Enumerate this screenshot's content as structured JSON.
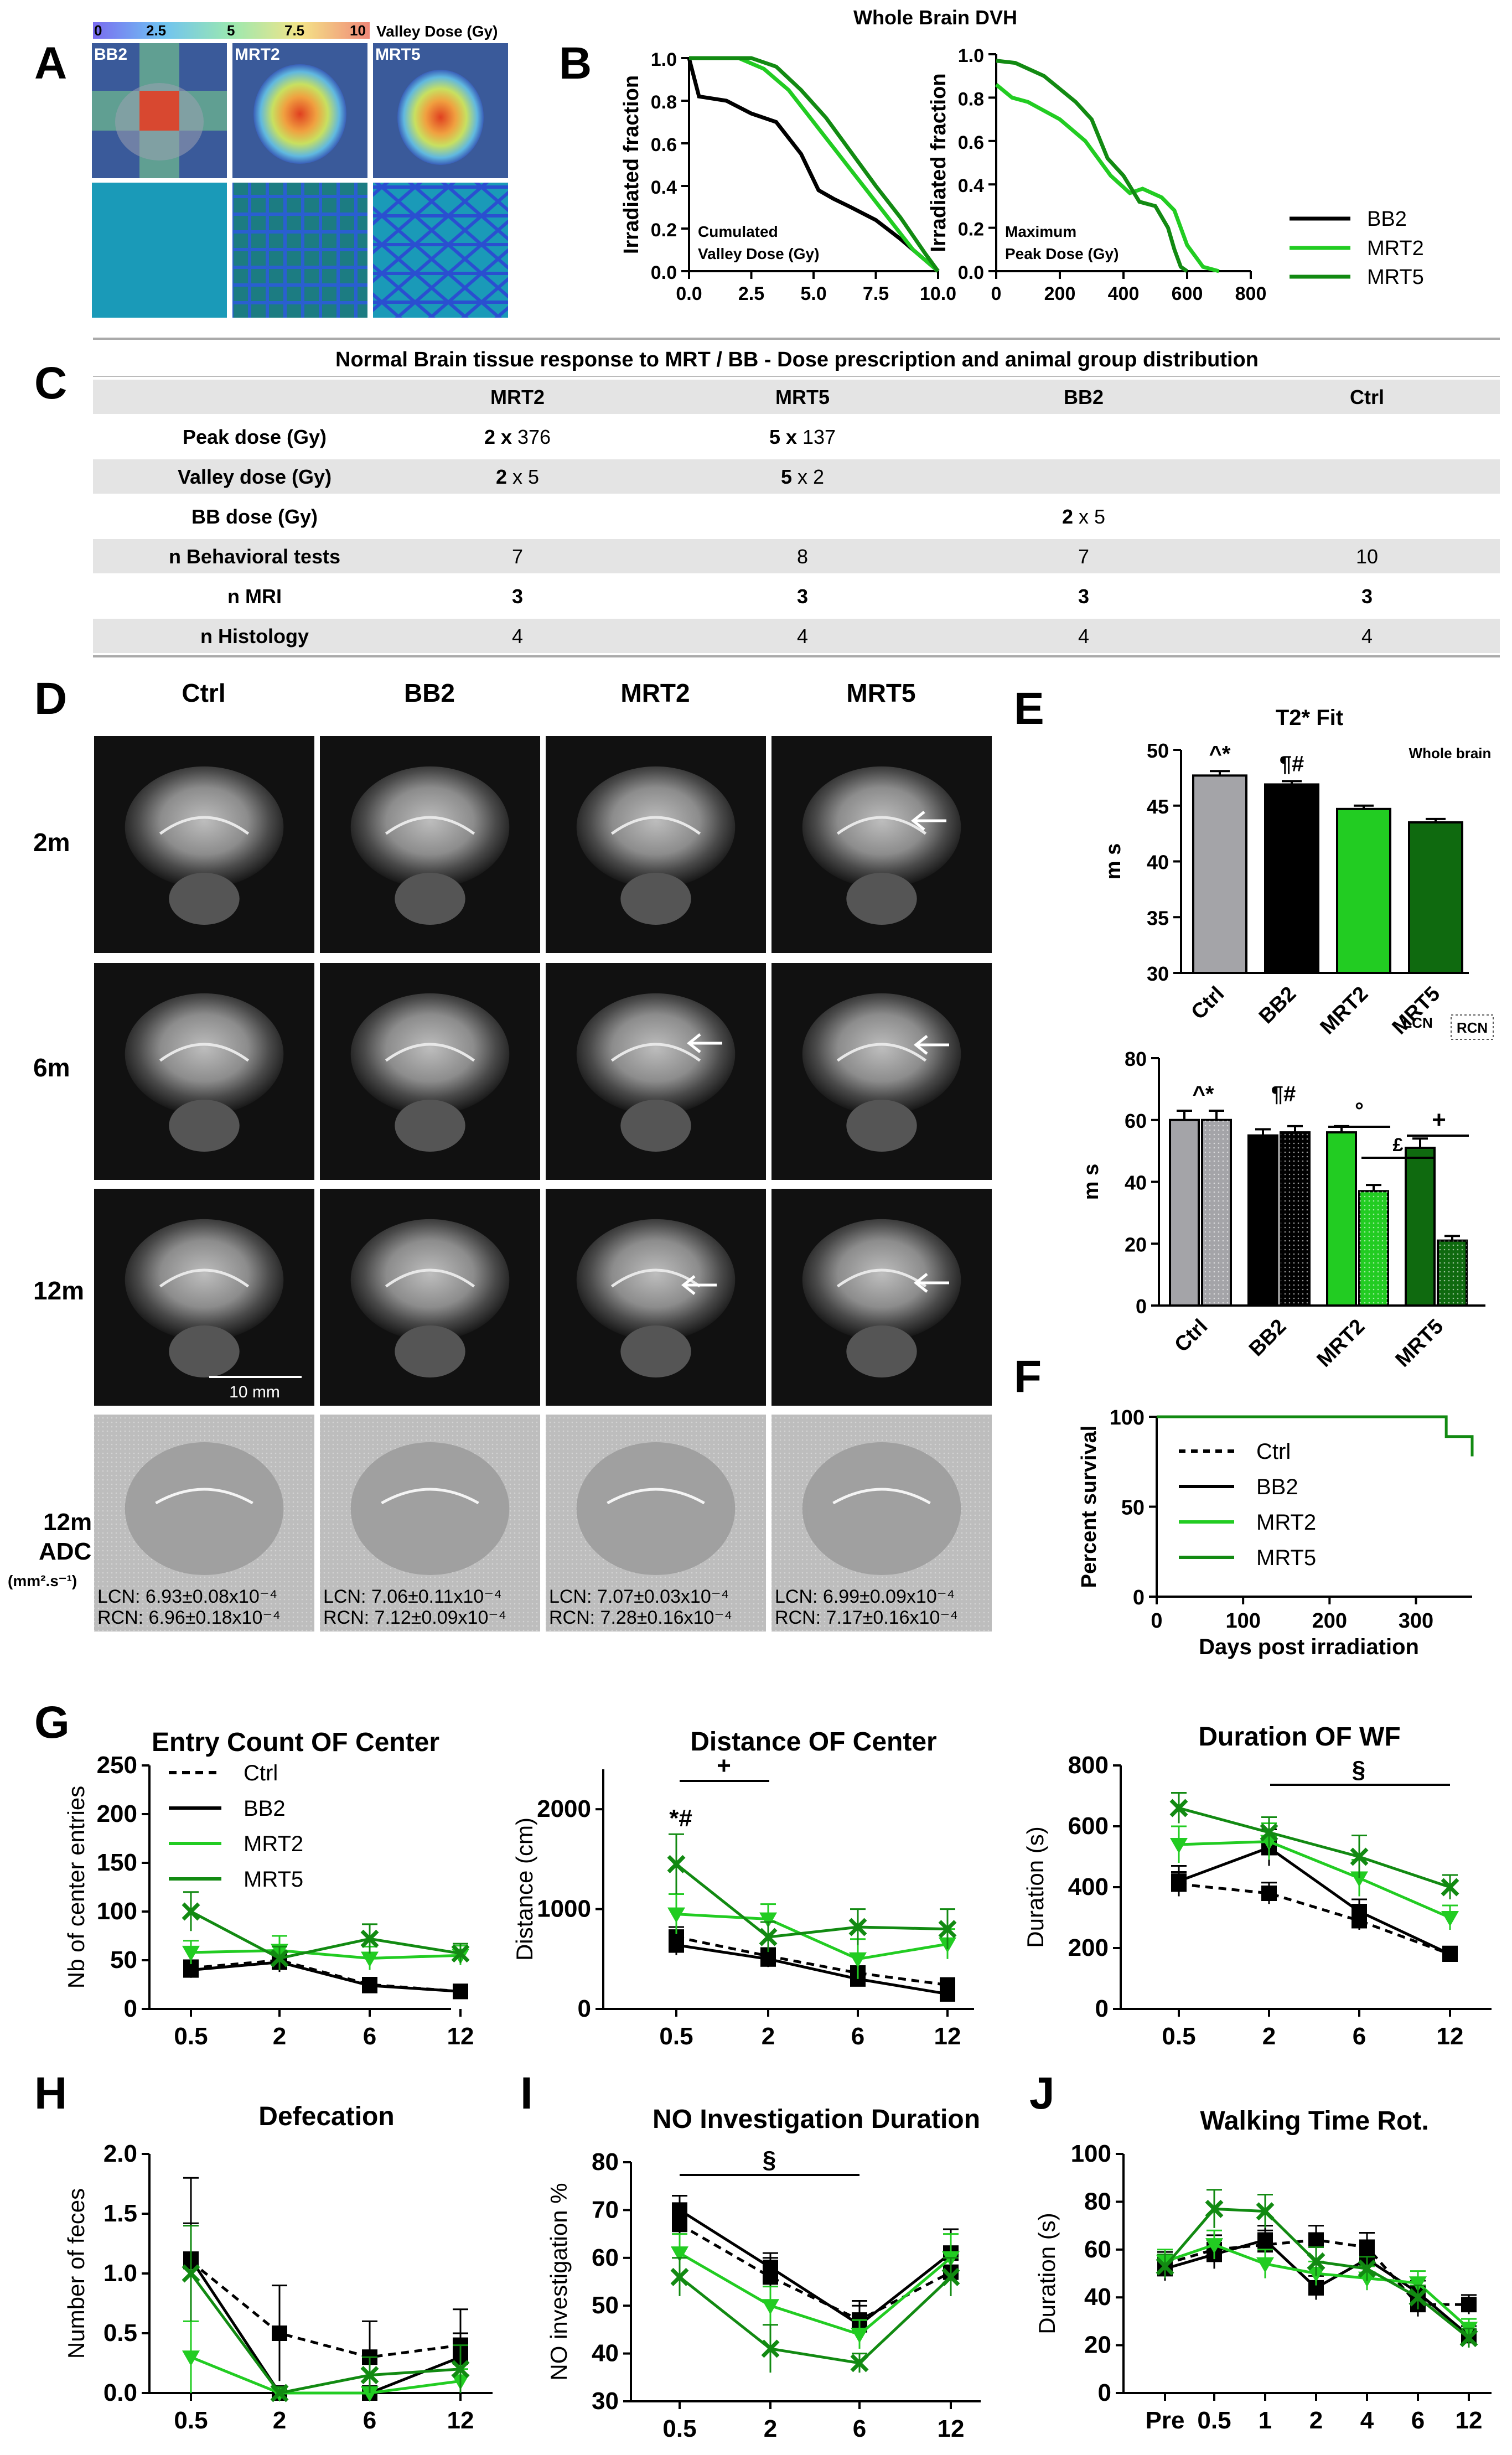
{
  "panel_letters": {
    "A": "A",
    "B": "B",
    "C": "C",
    "D": "D",
    "E": "E",
    "F": "F",
    "G": "G",
    "H": "H",
    "I": "I",
    "J": "J"
  },
  "colors": {
    "ctrl": "#000000",
    "bb2": "#000000",
    "mrt2": "#22cc22",
    "mrt5": "#128a12",
    "ctrl_bar": "#a4a4a8",
    "mrt2_bar": "#22cc22",
    "mrt5_bar": "#0f6a0f"
  },
  "panel_a": {
    "colorbar_ticks": [
      "0",
      "2.5",
      "5",
      "7.5",
      "10"
    ],
    "colorbar_label": "Valley Dose (Gy)",
    "tiles": [
      "BB2",
      "MRT2",
      "MRT5"
    ]
  },
  "panel_b": {
    "title": "Whole Brain DVH",
    "legend": [
      "BB2",
      "MRT2",
      "MRT5"
    ]
  },
  "chart_data": [
    {
      "type": "line",
      "panel": "B-left",
      "ylabel": "Irradiated fraction",
      "note_line1": "Cumulated",
      "note_line2": "Valley Dose (Gy)",
      "xlim": [
        0,
        10
      ],
      "ylim": [
        0,
        1
      ],
      "xticks": [
        "0.0",
        "2.5",
        "5.0",
        "7.5",
        "10.0"
      ],
      "yticks": [
        "0.0",
        "0.2",
        "0.4",
        "0.6",
        "0.8",
        "1.0"
      ],
      "series": [
        {
          "name": "BB2",
          "color": "#000000",
          "x": [
            0,
            0.4,
            1.5,
            2.5,
            3.5,
            4.5,
            5.2,
            5.8,
            6.5,
            7.5,
            8.5,
            9.2,
            10
          ],
          "y": [
            1,
            0.82,
            0.8,
            0.74,
            0.7,
            0.55,
            0.38,
            0.34,
            0.3,
            0.24,
            0.15,
            0.08,
            0
          ]
        },
        {
          "name": "MRT2",
          "color": "#22cc22",
          "x": [
            0,
            2,
            3,
            4,
            5,
            6,
            7,
            8,
            9,
            10
          ],
          "y": [
            1,
            1,
            0.95,
            0.85,
            0.7,
            0.55,
            0.4,
            0.25,
            0.1,
            0
          ]
        },
        {
          "name": "MRT5",
          "color": "#128a12",
          "x": [
            0,
            2.5,
            3.5,
            4.5,
            5.5,
            6.5,
            7.5,
            8.5,
            9.5,
            10
          ],
          "y": [
            1,
            1,
            0.96,
            0.85,
            0.72,
            0.56,
            0.4,
            0.25,
            0.08,
            0
          ]
        }
      ]
    },
    {
      "type": "line",
      "panel": "B-right",
      "ylabel": "Irradiated fraction",
      "note_line1": "Maximum",
      "note_line2": "Peak Dose (Gy)",
      "xlim": [
        0,
        800
      ],
      "ylim": [
        0,
        1
      ],
      "xticks": [
        "0",
        "200",
        "400",
        "600",
        "800"
      ],
      "yticks": [
        "0.0",
        "0.2",
        "0.4",
        "0.6",
        "0.8",
        "1.0"
      ],
      "series": [
        {
          "name": "MRT2",
          "color": "#22cc22",
          "x": [
            0,
            50,
            100,
            200,
            280,
            360,
            420,
            460,
            520,
            560,
            600,
            650,
            700
          ],
          "y": [
            0.86,
            0.8,
            0.78,
            0.7,
            0.6,
            0.44,
            0.36,
            0.38,
            0.34,
            0.28,
            0.12,
            0.02,
            0
          ]
        },
        {
          "name": "MRT5",
          "color": "#128a12",
          "x": [
            0,
            60,
            150,
            250,
            300,
            350,
            400,
            450,
            500,
            540,
            560,
            580,
            600
          ],
          "y": [
            0.97,
            0.96,
            0.9,
            0.78,
            0.7,
            0.52,
            0.44,
            0.32,
            0.3,
            0.2,
            0.1,
            0.02,
            0
          ]
        }
      ]
    },
    {
      "type": "bar",
      "panel": "E-top",
      "title": "T2* Fit",
      "note": "Whole brain",
      "ylabel": "m s",
      "ylim": [
        30,
        50
      ],
      "yticks": [
        "30",
        "35",
        "40",
        "45",
        "50"
      ],
      "categories": [
        "Ctrl",
        "BB2",
        "MRT2",
        "MRT5"
      ],
      "values": [
        47.7,
        46.9,
        44.7,
        43.5
      ],
      "errors": [
        0.4,
        0.3,
        0.3,
        0.3
      ],
      "annotations": [
        "^*",
        "¶#",
        "",
        ""
      ]
    },
    {
      "type": "bar",
      "panel": "E-bottom",
      "ylabel": "m s",
      "ylim": [
        0,
        80
      ],
      "yticks": [
        "0",
        "20",
        "40",
        "60",
        "80"
      ],
      "categories": [
        "Ctrl",
        "BB2",
        "MRT2",
        "MRT5"
      ],
      "series": [
        {
          "name": "LCN",
          "values": [
            60,
            55,
            56,
            51
          ],
          "errors": [
            3,
            2,
            2,
            3
          ]
        },
        {
          "name": "RCN",
          "values": [
            60,
            56,
            37,
            21
          ],
          "errors": [
            3,
            2,
            2,
            1.5
          ]
        }
      ],
      "annotations": [
        "^*",
        "¶#",
        "°",
        "£",
        "+"
      ]
    },
    {
      "type": "line",
      "panel": "F",
      "ylabel": "Percent survival",
      "xlabel": "Days post irradiation",
      "xlim": [
        0,
        365
      ],
      "ylim": [
        0,
        100
      ],
      "xticks": [
        "0",
        "100",
        "200",
        "300"
      ],
      "yticks": [
        "0",
        "50",
        "100"
      ],
      "series": [
        {
          "name": "Ctrl",
          "color": "#000000",
          "x": [
            0,
            365
          ],
          "y": [
            100,
            100
          ]
        },
        {
          "name": "BB2",
          "color": "#000000",
          "x": [
            0,
            365
          ],
          "y": [
            100,
            100
          ]
        },
        {
          "name": "MRT2",
          "color": "#22cc22",
          "x": [
            0,
            365
          ],
          "y": [
            100,
            100
          ]
        },
        {
          "name": "MRT5",
          "color": "#128a12",
          "x": [
            0,
            335,
            335,
            365,
            365
          ],
          "y": [
            100,
            100,
            89,
            89,
            78
          ]
        }
      ]
    },
    {
      "type": "line",
      "panel": "G-1",
      "title": "Entry Count OF Center",
      "ylabel": "Nb of center entries",
      "ylim": [
        0,
        250
      ],
      "yticks": [
        "0",
        "50",
        "100",
        "150",
        "200",
        "250"
      ],
      "categories": [
        "0.5",
        "2",
        "6",
        "12"
      ],
      "series": [
        {
          "name": "Ctrl",
          "values": [
            42,
            50,
            25,
            18
          ],
          "errors": [
            8,
            10,
            6,
            5
          ]
        },
        {
          "name": "BB2",
          "values": [
            40,
            48,
            24,
            18
          ],
          "errors": [
            8,
            10,
            6,
            5
          ]
        },
        {
          "name": "MRT2",
          "values": [
            58,
            60,
            52,
            55
          ],
          "errors": [
            12,
            15,
            12,
            10
          ]
        },
        {
          "name": "MRT5",
          "values": [
            100,
            52,
            72,
            57
          ],
          "errors": [
            20,
            12,
            15,
            10
          ]
        }
      ]
    },
    {
      "type": "line",
      "panel": "G-2",
      "title": "Distance OF Center",
      "ylabel": "Distance (cm)",
      "ylim": [
        0,
        2400
      ],
      "yticks": [
        "0",
        "1000",
        "2000"
      ],
      "categories": [
        "0.5",
        "2",
        "6",
        "12"
      ],
      "series": [
        {
          "name": "Ctrl",
          "values": [
            720,
            530,
            360,
            240
          ],
          "errors": [
            100,
            80,
            60,
            50
          ]
        },
        {
          "name": "BB2",
          "values": [
            640,
            500,
            300,
            150
          ],
          "errors": [
            100,
            80,
            60,
            40
          ]
        },
        {
          "name": "MRT2",
          "values": [
            950,
            900,
            500,
            650
          ],
          "errors": [
            200,
            150,
            200,
            150
          ]
        },
        {
          "name": "MRT5",
          "values": [
            1450,
            720,
            820,
            800
          ],
          "errors": [
            300,
            150,
            180,
            200
          ]
        }
      ],
      "annotations": [
        "*#",
        "+"
      ]
    },
    {
      "type": "line",
      "panel": "G-3",
      "title": "Duration OF WF",
      "ylabel": "Duration (s)",
      "ylim": [
        0,
        800
      ],
      "yticks": [
        "0",
        "200",
        "400",
        "600",
        "800"
      ],
      "categories": [
        "0.5",
        "2",
        "6",
        "12"
      ],
      "series": [
        {
          "name": "Ctrl",
          "values": [
            410,
            380,
            290,
            180
          ],
          "errors": [
            40,
            35,
            30,
            20
          ]
        },
        {
          "name": "BB2",
          "values": [
            420,
            530,
            320,
            180
          ],
          "errors": [
            50,
            60,
            40,
            25
          ]
        },
        {
          "name": "MRT2",
          "values": [
            540,
            550,
            430,
            300
          ],
          "errors": [
            60,
            60,
            60,
            40
          ]
        },
        {
          "name": "MRT5",
          "values": [
            660,
            580,
            500,
            400
          ],
          "errors": [
            50,
            50,
            70,
            40
          ]
        }
      ],
      "annotations": [
        "§"
      ]
    },
    {
      "type": "line",
      "panel": "H",
      "title": "Defecation",
      "ylabel": "Number of feces",
      "ylim": [
        0,
        2
      ],
      "yticks": [
        "0.0",
        "0.5",
        "1.0",
        "1.5",
        "2.0"
      ],
      "categories": [
        "0.5",
        "2",
        "6",
        "12"
      ],
      "series": [
        {
          "name": "Ctrl",
          "values": [
            1.1,
            0.5,
            0.3,
            0.4
          ],
          "errors": [
            0.7,
            0.4,
            0.3,
            0.3
          ]
        },
        {
          "name": "BB2",
          "values": [
            1.12,
            0.0,
            0.0,
            0.3
          ],
          "errors": [
            0.3,
            0.05,
            0.05,
            0.2
          ]
        },
        {
          "name": "MRT2",
          "values": [
            0.3,
            0.0,
            0.0,
            0.1
          ],
          "errors": [
            0.3,
            0.05,
            0.05,
            0.1
          ]
        },
        {
          "name": "MRT5",
          "values": [
            1.0,
            0.0,
            0.15,
            0.2
          ],
          "errors": [
            0.4,
            0.05,
            0.15,
            0.2
          ]
        }
      ]
    },
    {
      "type": "line",
      "panel": "I",
      "title": "NO Investigation Duration",
      "ylabel": "NO investigation %",
      "ylim": [
        30,
        80
      ],
      "yticks": [
        "30",
        "40",
        "50",
        "60",
        "70",
        "80"
      ],
      "categories": [
        "0.5",
        "2",
        "6",
        "12"
      ],
      "series": [
        {
          "name": "Ctrl",
          "values": [
            67,
            56,
            47,
            57
          ],
          "errors": [
            4,
            4,
            4,
            5
          ]
        },
        {
          "name": "BB2",
          "values": [
            70,
            58,
            46,
            61
          ],
          "errors": [
            3,
            3,
            4,
            5
          ]
        },
        {
          "name": "MRT2",
          "values": [
            61,
            50,
            44,
            60
          ],
          "errors": [
            4,
            4,
            3,
            5
          ]
        },
        {
          "name": "MRT5",
          "values": [
            56,
            41,
            38,
            56
          ],
          "errors": [
            4,
            5,
            2,
            4
          ]
        }
      ],
      "annotations": [
        "§"
      ]
    },
    {
      "type": "line",
      "panel": "J",
      "title": "Walking Time Rot.",
      "ylabel": "Duration (s)",
      "ylim": [
        0,
        100
      ],
      "yticks": [
        "0",
        "20",
        "40",
        "60",
        "80",
        "100"
      ],
      "categories": [
        "Pre",
        "0.5",
        "1",
        "2",
        "4",
        "6",
        "12"
      ],
      "series": [
        {
          "name": "Ctrl",
          "values": [
            54,
            60,
            62,
            64,
            61,
            37,
            37
          ],
          "errors": [
            5,
            6,
            6,
            6,
            6,
            5,
            4
          ]
        },
        {
          "name": "BB2",
          "values": [
            52,
            58,
            64,
            44,
            56,
            42,
            24
          ],
          "errors": [
            5,
            6,
            6,
            5,
            6,
            5,
            4
          ]
        },
        {
          "name": "MRT2",
          "values": [
            55,
            62,
            54,
            50,
            48,
            46,
            27
          ],
          "errors": [
            5,
            6,
            6,
            5,
            5,
            5,
            4
          ]
        },
        {
          "name": "MRT5",
          "values": [
            53,
            77,
            76,
            55,
            52,
            40,
            23
          ],
          "errors": [
            5,
            8,
            7,
            6,
            5,
            5,
            4
          ]
        }
      ]
    }
  ],
  "panel_c": {
    "title": "Normal Brain tissue response to MRT / BB - Dose prescription and animal group distribution",
    "headers": [
      "",
      "MRT2",
      "MRT5",
      "BB2",
      "Ctrl"
    ],
    "rows": [
      {
        "label": "Peak dose (Gy)",
        "cells": [
          [
            "2 x ",
            "376"
          ],
          [
            "5 x ",
            "137"
          ],
          [
            "",
            ""
          ],
          [
            "",
            ""
          ]
        ]
      },
      {
        "label": "Valley dose (Gy)",
        "cells": [
          [
            "2 ",
            "x 5"
          ],
          [
            "5 ",
            "x 2"
          ],
          [
            "",
            ""
          ],
          [
            "",
            ""
          ]
        ]
      },
      {
        "label": "BB dose (Gy)",
        "cells": [
          [
            "",
            ""
          ],
          [
            "",
            ""
          ],
          [
            "2 ",
            "x 5"
          ],
          [
            "",
            ""
          ]
        ]
      },
      {
        "label": "n Behavioral tests",
        "cells": [
          [
            "",
            "7"
          ],
          [
            "",
            "8"
          ],
          [
            "",
            "7"
          ],
          [
            "",
            "10"
          ]
        ]
      },
      {
        "label": "n MRI",
        "cells": [
          [
            "3",
            ""
          ],
          [
            "3",
            ""
          ],
          [
            "3",
            ""
          ],
          [
            "3",
            ""
          ]
        ]
      },
      {
        "label": "n Histology",
        "cells": [
          [
            "",
            "4"
          ],
          [
            "",
            "4"
          ],
          [
            "",
            "4"
          ],
          [
            "",
            "4"
          ]
        ]
      }
    ]
  },
  "panel_d": {
    "columns": [
      "Ctrl",
      "BB2",
      "MRT2",
      "MRT5"
    ],
    "rows": [
      "2m",
      "6m",
      "12m"
    ],
    "adc_row_line1": "12m",
    "adc_row_line2": "ADC",
    "adc_row_line3": "(mm².s⁻¹)",
    "scale_bar": "10 mm",
    "adc": [
      {
        "lcn": "LCN: 6.93±0.08x10⁻⁴",
        "rcn": "RCN: 6.96±0.18x10⁻⁴"
      },
      {
        "lcn": "LCN: 7.06±0.11x10⁻⁴",
        "rcn": "RCN: 7.12±0.09x10⁻⁴"
      },
      {
        "lcn": "LCN: 7.07±0.03x10⁻⁴",
        "rcn": "RCN: 7.28±0.16x10⁻⁴"
      },
      {
        "lcn": "LCN: 6.99±0.09x10⁻⁴",
        "rcn": "RCN: 7.17±0.16x10⁻⁴"
      }
    ]
  },
  "panel_e": {
    "legend_lcn": "LCN",
    "legend_rcn": "RCN"
  },
  "panel_g_legend": [
    "Ctrl",
    "BB2",
    "MRT2",
    "MRT5"
  ],
  "panel_f_legend": [
    "Ctrl",
    "BB2",
    "MRT2",
    "MRT5"
  ]
}
